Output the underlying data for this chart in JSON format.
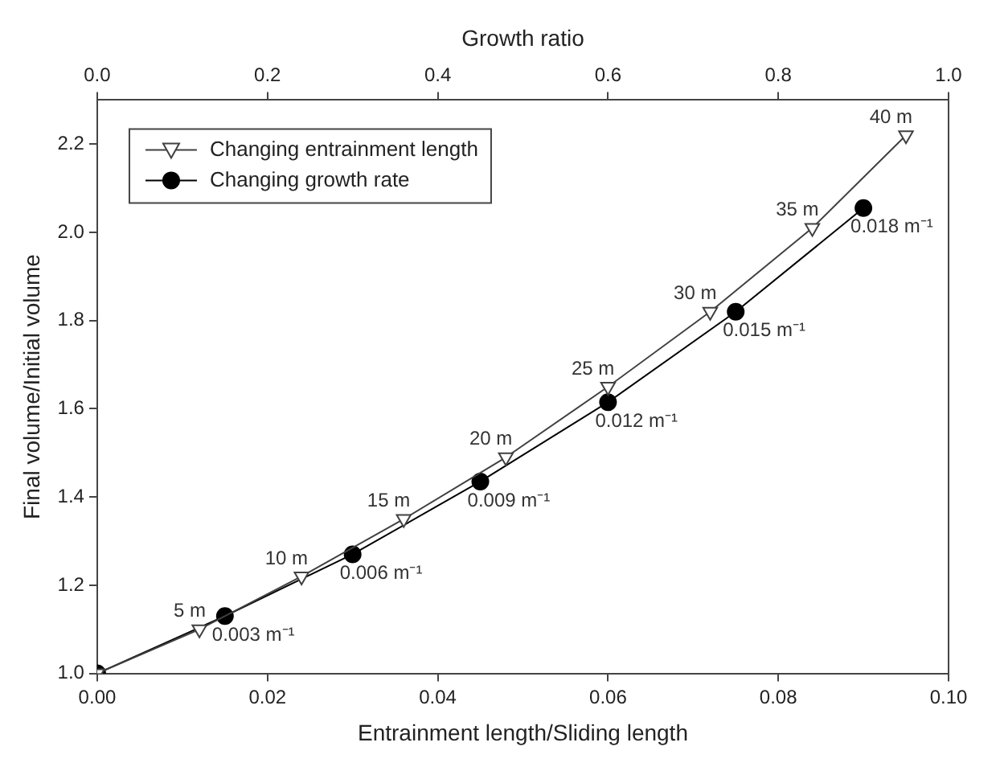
{
  "chart_data": {
    "type": "line",
    "xlabel": "Entrainment length/Sliding length",
    "ylabel": "Final volume/Initial volume",
    "x2label": "Growth ratio",
    "xlim": [
      0,
      0.1
    ],
    "xticks": [
      {
        "value": 0,
        "label": "0.00"
      },
      {
        "value": 0.02,
        "label": "0.02"
      },
      {
        "value": 0.04,
        "label": "0.04"
      },
      {
        "value": 0.06,
        "label": "0.06"
      },
      {
        "value": 0.08,
        "label": "0.08"
      },
      {
        "value": 0.1,
        "label": "0.10"
      }
    ],
    "x2lim": [
      0,
      1
    ],
    "x2ticks": [
      {
        "value": 0,
        "label": "0.0"
      },
      {
        "value": 0.2,
        "label": "0.2"
      },
      {
        "value": 0.4,
        "label": "0.4"
      },
      {
        "value": 0.6,
        "label": "0.6"
      },
      {
        "value": 0.8,
        "label": "0.8"
      },
      {
        "value": 1,
        "label": "1.0"
      }
    ],
    "ylim": [
      1,
      2.3
    ],
    "yticks": [
      {
        "value": 1,
        "label": "1.0"
      },
      {
        "value": 1.2,
        "label": "1.2"
      },
      {
        "value": 1.4,
        "label": "1.4"
      },
      {
        "value": 1.6,
        "label": "1.6"
      },
      {
        "value": 1.8,
        "label": "1.8"
      },
      {
        "value": 2,
        "label": "2.0"
      },
      {
        "value": 2.2,
        "label": "2.2"
      }
    ],
    "grid": false,
    "legend": "top left",
    "series": [
      {
        "name": "Changing entrainment length",
        "color": "#404040",
        "marker": "triangle",
        "x": [
          0,
          0.012,
          0.024,
          0.036,
          0.048,
          0.06,
          0.072,
          0.084,
          0.095
        ],
        "values": [
          1.0,
          1.1,
          1.22,
          1.35,
          1.49,
          1.65,
          1.82,
          2.01,
          2.22
        ]
      },
      {
        "name": "Changing growth rate",
        "color": "#000000",
        "marker": "circle",
        "x": [
          0,
          0.015,
          0.03,
          0.045,
          0.06,
          0.075,
          0.09
        ],
        "values": [
          1.0,
          1.13,
          1.27,
          1.435,
          1.615,
          1.82,
          2.055
        ]
      }
    ],
    "annotations": [
      {
        "text": "5 m",
        "x": 0.012,
        "y": 1.1
      },
      {
        "text": "10 m",
        "x": 0.024,
        "y": 1.22
      },
      {
        "text": "15 m",
        "x": 0.036,
        "y": 1.35
      },
      {
        "text": "20 m",
        "x": 0.048,
        "y": 1.49
      },
      {
        "text": "25 m",
        "x": 0.06,
        "y": 1.65
      },
      {
        "text": "30 m",
        "x": 0.072,
        "y": 1.82
      },
      {
        "text": "35 m",
        "x": 0.084,
        "y": 2.01
      },
      {
        "text": "40 m",
        "x": 0.095,
        "y": 2.22
      },
      {
        "text": "0.003 m⁻¹",
        "x": 0.015,
        "y": 1.13
      },
      {
        "text": "0.006 m⁻¹",
        "x": 0.03,
        "y": 1.27
      },
      {
        "text": "0.009 m⁻¹",
        "x": 0.045,
        "y": 1.435
      },
      {
        "text": "0.012 m⁻¹",
        "x": 0.06,
        "y": 1.615
      },
      {
        "text": "0.015 m⁻¹",
        "x": 0.075,
        "y": 1.82
      },
      {
        "text": "0.018 m⁻¹",
        "x": 0.09,
        "y": 2.055
      }
    ]
  }
}
